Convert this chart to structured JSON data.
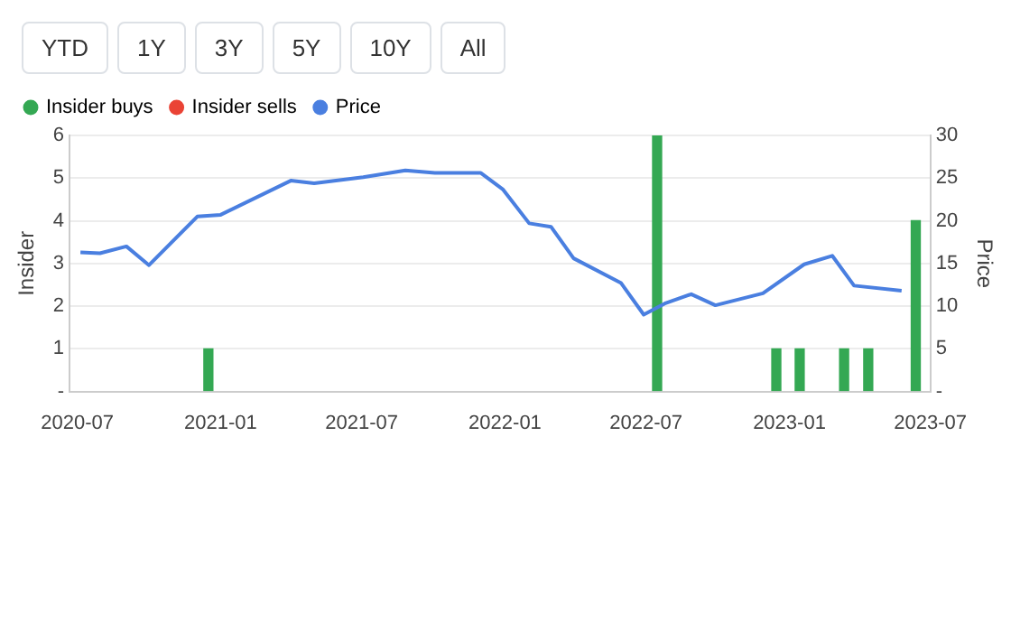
{
  "chart_data": {
    "type": "bar",
    "xlabel": null,
    "ylabel": "Insider",
    "y2label": "Price",
    "annotations": [
      "YTD",
      "1Y",
      "3Y",
      "5Y",
      "10Y",
      "All"
    ],
    "xlim": [
      "2020-06-21",
      "2023-07-01"
    ],
    "xticks": [
      "2020-07",
      "2021-01",
      "2021-07",
      "2022-01",
      "2022-07",
      "2023-01",
      "2023-07"
    ],
    "ylim": [
      0,
      6
    ],
    "yticks": [
      {
        "value": 0,
        "label": "-"
      },
      1,
      2,
      3,
      4,
      5,
      6
    ],
    "y2lim": [
      0,
      30
    ],
    "y2ticks": [
      {
        "value": 0,
        "label": "-"
      },
      5,
      10,
      15,
      20,
      25,
      30
    ],
    "grid": "y",
    "legend": "top left",
    "marker": "none",
    "series": [
      {
        "name": "Insider buys",
        "color": "#34a853",
        "x": [
          "2020-12-22",
          "2022-07-21",
          "2022-12-21",
          "2023-01-20",
          "2023-03-18",
          "2023-04-18",
          "2023-06-18"
        ],
        "values": [
          1,
          6,
          1,
          1,
          1,
          1,
          4
        ]
      },
      {
        "name": "Insider sells",
        "color": "#ea4335"
      },
      {
        "name": "Price",
        "type": "line",
        "axis": "y2",
        "color": "#4a7fe0",
        "line_style": "solid",
        "x": [
          "2020-07-05",
          "2020-07-30",
          "2020-09-02",
          "2020-10-01",
          "2020-12-02",
          "2021-01-01",
          "2021-04-01",
          "2021-05-01",
          "2021-07-03",
          "2021-08-26",
          "2021-10-03",
          "2021-12-01",
          "2021-12-29",
          "2022-02-01",
          "2022-03-01",
          "2022-03-30",
          "2022-05-30",
          "2022-06-28",
          "2022-07-25",
          "2022-08-28",
          "2022-09-28",
          "2022-11-28",
          "2023-01-20",
          "2023-02-25",
          "2023-03-25",
          "2023-05-25"
        ],
        "values": [
          16.3,
          16.2,
          17.0,
          14.8,
          20.5,
          20.7,
          24.7,
          24.4,
          25.1,
          25.9,
          25.6,
          25.6,
          23.7,
          19.7,
          19.3,
          15.6,
          12.7,
          9.0,
          10.3,
          11.4,
          10.1,
          11.5,
          14.9,
          15.9,
          12.4,
          11.8
        ]
      }
    ]
  }
}
